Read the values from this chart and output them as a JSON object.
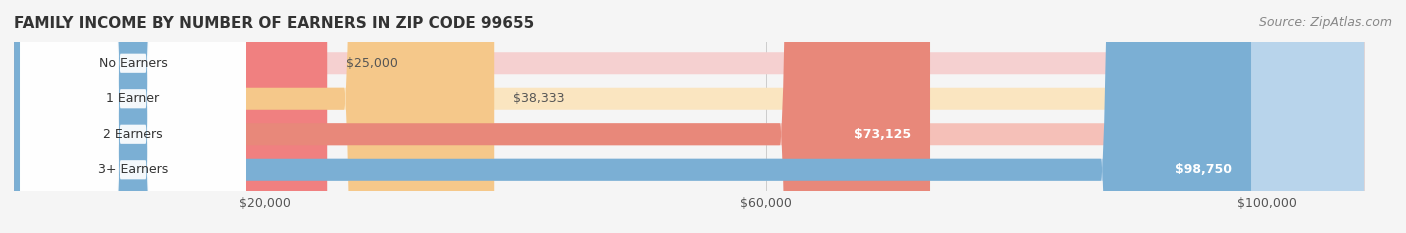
{
  "title": "FAMILY INCOME BY NUMBER OF EARNERS IN ZIP CODE 99655",
  "source": "Source: ZipAtlas.com",
  "categories": [
    "No Earners",
    "1 Earner",
    "2 Earners",
    "3+ Earners"
  ],
  "values": [
    25000,
    38333,
    73125,
    98750
  ],
  "labels": [
    "$25,000",
    "$38,333",
    "$73,125",
    "$98,750"
  ],
  "bar_colors": [
    "#f08080",
    "#f5c88a",
    "#e8887a",
    "#7bafd4"
  ],
  "bar_bg_colors": [
    "#f5d0d0",
    "#fae5c0",
    "#f5c0b8",
    "#b8d4eb"
  ],
  "label_colors": [
    "#555555",
    "#555555",
    "#ffffff",
    "#ffffff"
  ],
  "x_ticks": [
    20000,
    60000,
    100000
  ],
  "x_tick_labels": [
    "$20,000",
    "$60,000",
    "$100,000"
  ],
  "xlim": [
    0,
    110000
  ],
  "background_color": "#f5f5f5",
  "title_fontsize": 11,
  "source_fontsize": 9,
  "bar_label_fontsize": 9,
  "category_fontsize": 9,
  "tick_fontsize": 9
}
